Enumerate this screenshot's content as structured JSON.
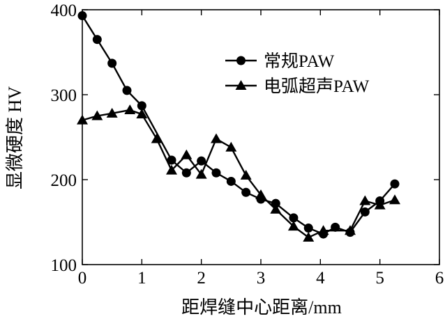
{
  "chart_data": {
    "type": "line",
    "xlabel": "距焊缝中心距离/mm",
    "ylabel": "显微硬度  HV",
    "xlim": [
      0,
      6
    ],
    "ylim": [
      100,
      400
    ],
    "xticks": [
      "0",
      "1",
      "2",
      "3",
      "4",
      "5",
      "6"
    ],
    "yticks": [
      "100",
      "200",
      "300",
      "400"
    ],
    "grid": false,
    "legend_position": "upper-right",
    "series": [
      {
        "name": "常规PAW",
        "marker": "circle",
        "x": [
          0,
          0.25,
          0.5,
          0.75,
          1.0,
          1.5,
          1.75,
          2.0,
          2.25,
          2.5,
          2.75,
          3.0,
          3.25,
          3.55,
          3.8,
          4.05,
          4.25,
          4.5,
          4.75,
          5.0,
          5.25
        ],
        "y": [
          393,
          365,
          337,
          305,
          287,
          223,
          208,
          222,
          208,
          198,
          185,
          177,
          172,
          155,
          143,
          136,
          144,
          138,
          162,
          175,
          195
        ]
      },
      {
        "name": "电弧超声PAW",
        "marker": "triangle",
        "x": [
          0,
          0.25,
          0.5,
          0.8,
          1.0,
          1.25,
          1.5,
          1.75,
          2.0,
          2.25,
          2.5,
          2.75,
          3.0,
          3.25,
          3.55,
          3.8,
          4.05,
          4.5,
          4.75,
          5.0,
          5.25
        ],
        "y": [
          270,
          275,
          278,
          282,
          277,
          248,
          211,
          229,
          206,
          248,
          238,
          205,
          182,
          165,
          145,
          132,
          140,
          140,
          175,
          170,
          176
        ]
      }
    ]
  }
}
